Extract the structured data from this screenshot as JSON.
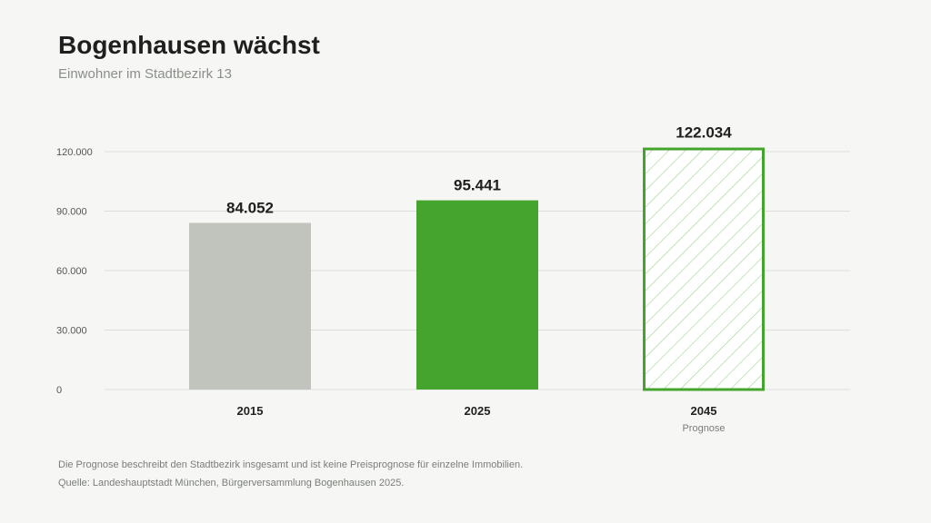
{
  "title": "Bogenhausen wächst",
  "subtitle": "Einwohner im Stadtbezirk 13",
  "footnotes": [
    "Die Prognose beschreibt den Stadtbezirk insgesamt und ist keine Preisprognose für einzelne Immobilien.",
    "Quelle: Landeshauptstadt München, Bürgerversammlung Bogenhausen 2025."
  ],
  "colors": {
    "bar_2015": "#c0c4bc",
    "bar_2025": "#45a42d",
    "bar_2045_outline": "#45a42d",
    "hatch": "#9fd28e",
    "grid": "#dddddb",
    "tick_text": "#555555",
    "value_text": "#1f1f1f"
  },
  "chart_data": {
    "type": "bar",
    "categories": [
      "2015",
      "2025",
      "2045"
    ],
    "category_sublabels": [
      "",
      "",
      "Prognose"
    ],
    "values": [
      84052,
      95441,
      122034
    ],
    "value_labels": [
      "84.052",
      "95.441",
      "122.034"
    ],
    "bar_styles": [
      "solid-grey",
      "solid-green",
      "hatched-outline-green"
    ],
    "ylim": [
      0,
      120000
    ],
    "yticks": [
      0,
      30000,
      60000,
      90000,
      120000
    ],
    "ytick_labels": [
      "0",
      "30.000",
      "60.000",
      "90.000",
      "120.000"
    ],
    "grid": true,
    "title": "Bogenhausen wächst",
    "subtitle": "Einwohner im Stadtbezirk 13"
  }
}
